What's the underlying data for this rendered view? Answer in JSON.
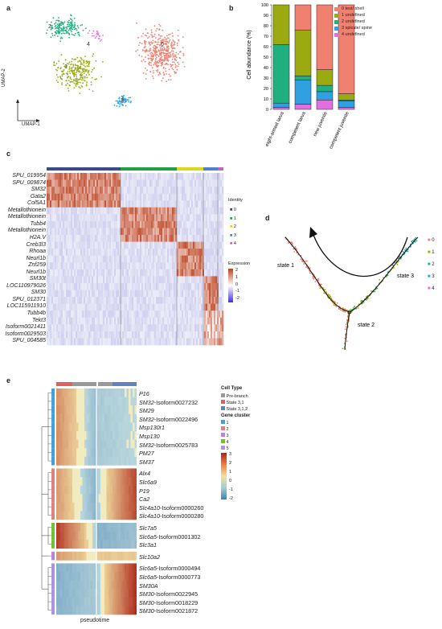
{
  "panels": {
    "a": "a",
    "b": "b",
    "c": "c",
    "d": "d",
    "e": "e"
  },
  "colors": {
    "cluster0": "#f08070",
    "cluster1": "#9aaa10",
    "cluster2": "#20b080",
    "cluster3": "#30a0e0",
    "cluster4": "#e070e0"
  },
  "umap": {
    "xlabel": "UMAP-1",
    "ylabel": "UMAP-2",
    "cluster_labels": [
      "0",
      "1",
      "2",
      "3",
      "4"
    ]
  },
  "chart_data": {
    "type": "bar",
    "stacked": true,
    "categories": [
      "eight-armed larva",
      "competent larva",
      "new juvenile",
      "competent juvenile"
    ],
    "ylabel": "Cell abundance (%)",
    "ylim": [
      0,
      100
    ],
    "yticks": [
      "0",
      "10",
      "20",
      "30",
      "40",
      "50",
      "60",
      "70",
      "80",
      "90",
      "100"
    ],
    "series": [
      {
        "name": "0 test/ shell",
        "color": "#f08070",
        "values": [
          0,
          24,
          62,
          85
        ]
      },
      {
        "name": "1 undefined",
        "color": "#9aaa10",
        "values": [
          38,
          44,
          15,
          6
        ]
      },
      {
        "name": "2 undefined",
        "color": "#20b080",
        "values": [
          56,
          4,
          6,
          1
        ]
      },
      {
        "name": "3 spicule/ spine",
        "color": "#30a0e0",
        "values": [
          4,
          23,
          8,
          6
        ]
      },
      {
        "name": "4 undefined",
        "color": "#e070e0",
        "values": [
          2,
          5,
          9,
          2
        ]
      }
    ]
  },
  "heatmap_c": {
    "genes": [
      "SPU_019954",
      "SPU_009874",
      "SM32",
      "Gata2",
      "Col5A1",
      "Metallothionein",
      "Metallothionein",
      "Tubb4",
      "Metallothionein",
      "H2A.V",
      "Creb3l3",
      "Rhoaa",
      "Neurl1b",
      "Znf259",
      "Neurl1b",
      "SM30t",
      "LOC110979026",
      "SM30",
      "SPU_012371",
      "LOC115911910",
      "Tubb4b",
      "Tekt3",
      "Isoform0021411",
      "Isoform0029503",
      "SPU_004585"
    ],
    "identity_title": "Identity",
    "identity_labels": [
      "0",
      "1",
      "2",
      "3",
      "4"
    ],
    "expression_title": "Expression",
    "expression_ticks": [
      "2",
      "1",
      "0",
      "-1",
      "-2"
    ]
  },
  "trajectory": {
    "states": [
      "state 1",
      "state 2",
      "state 3"
    ],
    "legend": [
      "0",
      "1",
      "2",
      "3",
      "4"
    ]
  },
  "heatmap_e": {
    "genes": [
      {
        "prefix": "",
        "name": "P16",
        "suffix": ""
      },
      {
        "prefix": "",
        "name": "SM32",
        "suffix": "-Isoform0027232"
      },
      {
        "prefix": "",
        "name": "SM29",
        "suffix": ""
      },
      {
        "prefix": "",
        "name": "SM32",
        "suffix": "-Isoform0022496"
      },
      {
        "prefix": "",
        "name": "Msp130r1",
        "suffix": ""
      },
      {
        "prefix": "",
        "name": "Msp130",
        "suffix": ""
      },
      {
        "prefix": "",
        "name": "SM32",
        "suffix": "-Isoform0025783"
      },
      {
        "prefix": "",
        "name": "PM27",
        "suffix": ""
      },
      {
        "prefix": "",
        "name": "SM37",
        "suffix": ""
      },
      {
        "prefix": "",
        "name": "Alx4",
        "suffix": ""
      },
      {
        "prefix": "",
        "name": "Slc6a9",
        "suffix": ""
      },
      {
        "prefix": "",
        "name": "P19",
        "suffix": ""
      },
      {
        "prefix": "",
        "name": "Ca2",
        "suffix": ""
      },
      {
        "prefix": "",
        "name": "Slc4a10",
        "suffix": "-Isoform0000260"
      },
      {
        "prefix": "",
        "name": "Slc4a10",
        "suffix": "-Isoform0000280"
      },
      {
        "prefix": "",
        "name": "Slc7a5",
        "suffix": ""
      },
      {
        "prefix": "",
        "name": "Slc6a5",
        "suffix": "-Isoform0001302"
      },
      {
        "prefix": "",
        "name": "Slc3a1",
        "suffix": ""
      },
      {
        "prefix": "",
        "name": "Slc10a2",
        "suffix": ""
      },
      {
        "prefix": "",
        "name": "Slc6a5",
        "suffix": "-Isoform0000494"
      },
      {
        "prefix": "",
        "name": "Slc6a5",
        "suffix": "-Isoform0000773"
      },
      {
        "prefix": "",
        "name": "SM30A",
        "suffix": ""
      },
      {
        "prefix": "",
        "name": "SM30",
        "suffix": "-Isoform0022945"
      },
      {
        "prefix": "",
        "name": "SM30",
        "suffix": "-Isoform0018229"
      },
      {
        "prefix": "",
        "name": "SM30",
        "suffix": "-Isoform0021872"
      }
    ],
    "cell_type_title": "Cell Type",
    "cell_types": [
      "Pre-branch",
      "State 3,1",
      "State 3,1,2"
    ],
    "gene_cluster_title": "Gene cluster",
    "gene_clusters": [
      "1",
      "2",
      "3",
      "4",
      "5"
    ],
    "scale_ticks": [
      "3",
      "2",
      "1",
      "0",
      "-1",
      "-2"
    ],
    "xlabel": "pseudotime"
  }
}
